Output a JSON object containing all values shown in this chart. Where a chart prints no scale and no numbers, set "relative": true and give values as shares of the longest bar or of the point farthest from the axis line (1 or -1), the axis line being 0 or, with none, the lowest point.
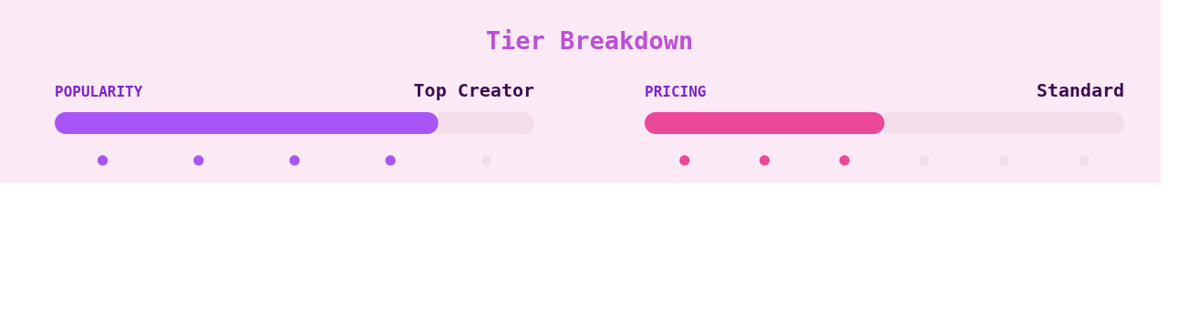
{
  "chart_data": [
    {
      "type": "bar",
      "title": "Tier Breakdown",
      "orientation": "horizontal",
      "stacked": true,
      "relative": true,
      "categories": [
        "POPULARITY"
      ],
      "annotations": [
        "Top Creator"
      ],
      "series": [
        {
          "color": "#a855f7",
          "values": [
            0.8
          ]
        },
        {
          "color": "#f3dde9",
          "values": [
            0.2
          ]
        }
      ]
    },
    {
      "type": "bar",
      "orientation": "horizontal",
      "stacked": true,
      "relative": true,
      "categories": [
        "PRICING"
      ],
      "annotations": [
        "Standard"
      ],
      "series": [
        {
          "color": "#ec4899",
          "values": [
            0.5
          ]
        },
        {
          "color": "#f3dde9",
          "values": [
            0.5
          ]
        }
      ]
    }
  ]
}
